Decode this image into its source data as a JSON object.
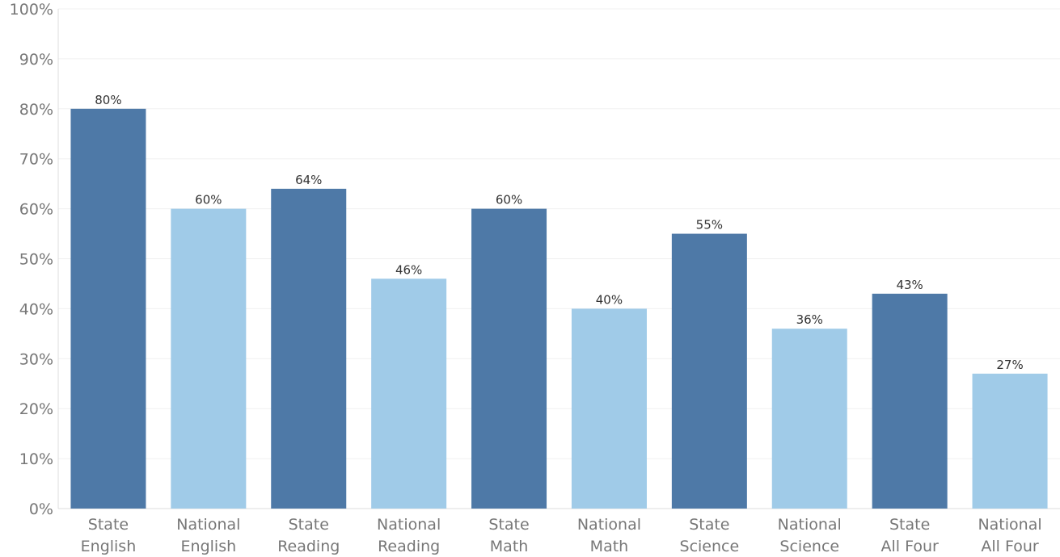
{
  "chart_data": {
    "type": "bar",
    "categories": [
      [
        "State",
        "English"
      ],
      [
        "National",
        "English"
      ],
      [
        "State",
        "Reading"
      ],
      [
        "National",
        "Reading"
      ],
      [
        "State",
        "Math"
      ],
      [
        "National",
        "Math"
      ],
      [
        "State",
        "Science"
      ],
      [
        "National",
        "Science"
      ],
      [
        "State",
        "All Four"
      ],
      [
        "National",
        "All Four"
      ]
    ],
    "values": [
      80,
      60,
      64,
      46,
      60,
      40,
      55,
      36,
      43,
      27
    ],
    "data_labels": [
      "80%",
      "60%",
      "64%",
      "46%",
      "60%",
      "40%",
      "55%",
      "36%",
      "43%",
      "27%"
    ],
    "bar_colors": [
      "#4e79a7",
      "#a0cbe8",
      "#4e79a7",
      "#a0cbe8",
      "#4e79a7",
      "#a0cbe8",
      "#4e79a7",
      "#a0cbe8",
      "#4e79a7",
      "#a0cbe8"
    ],
    "yticks": [
      "0%",
      "10%",
      "20%",
      "30%",
      "40%",
      "50%",
      "60%",
      "70%",
      "80%",
      "90%",
      "100%"
    ],
    "ylim": [
      0,
      100
    ],
    "grid": true,
    "legend": "none"
  }
}
